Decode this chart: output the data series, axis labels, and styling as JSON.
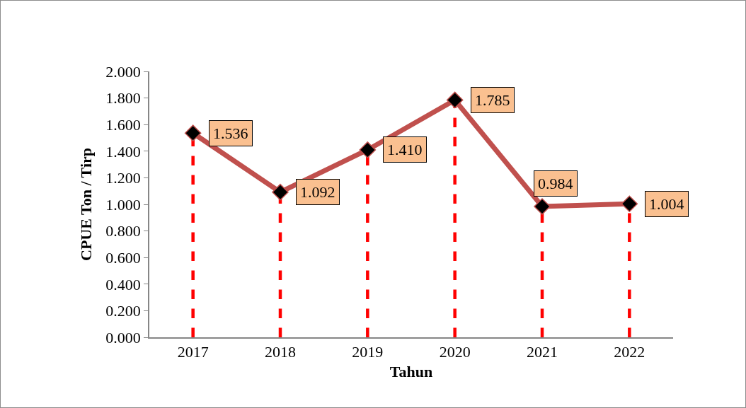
{
  "chart_data": {
    "type": "line",
    "xlabel": "Tahun",
    "ylabel": "CPUE Ton / Tirp",
    "categories": [
      "2017",
      "2018",
      "2019",
      "2020",
      "2021",
      "2022"
    ],
    "series": [
      {
        "color": "#c0504d",
        "values": [
          1.536,
          1.092,
          1.41,
          1.785,
          0.984,
          1.004
        ],
        "value_labels": [
          "1.536",
          "1.092",
          "1.410",
          "1.785",
          "0.984",
          "1.004"
        ]
      }
    ],
    "marker": "diamond",
    "line_style": "solid",
    "grid": false,
    "ylim": [
      0,
      2
    ],
    "yticks": [
      {
        "value": 0,
        "label": "0.000"
      },
      {
        "value": 0.2,
        "label": "0.200"
      },
      {
        "value": 0.4,
        "label": "0.400"
      },
      {
        "value": 0.6,
        "label": "0.600"
      },
      {
        "value": 0.8,
        "label": "0.800"
      },
      {
        "value": 1,
        "label": "1.000"
      },
      {
        "value": 1.2,
        "label": "1.200"
      },
      {
        "value": 1.4,
        "label": "1.400"
      },
      {
        "value": 1.6,
        "label": "1.600"
      },
      {
        "value": 1.8,
        "label": "1.800"
      },
      {
        "value": 2,
        "label": "2.000"
      }
    ],
    "ref_lines": [
      {
        "axis": "x",
        "value": "2017",
        "color": "#ff0000",
        "line_style": "dashed"
      },
      {
        "axis": "x",
        "value": "2018",
        "color": "#ff0000",
        "line_style": "dashed"
      },
      {
        "axis": "x",
        "value": "2019",
        "color": "#ff0000",
        "line_style": "dashed"
      },
      {
        "axis": "x",
        "value": "2020",
        "color": "#ff0000",
        "line_style": "dashed"
      },
      {
        "axis": "x",
        "value": "2021",
        "color": "#ff0000",
        "line_style": "dashed"
      },
      {
        "axis": "x",
        "value": "2022",
        "color": "#ff0000",
        "line_style": "dashed"
      }
    ]
  }
}
